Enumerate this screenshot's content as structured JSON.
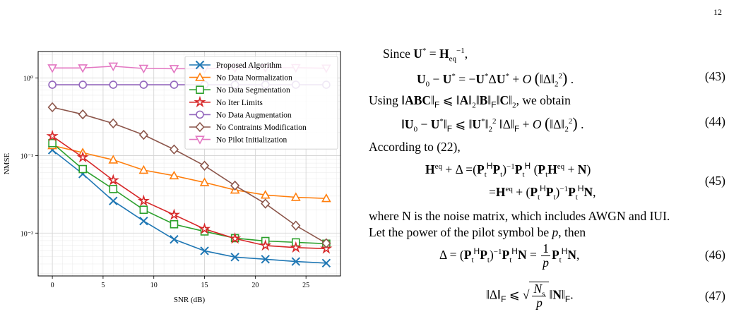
{
  "page_number": "12",
  "chart_data": {
    "type": "line",
    "xlabel": "SNR (dB)",
    "ylabel": "NMSE",
    "x": [
      0,
      3,
      6,
      9,
      12,
      15,
      18,
      21,
      24,
      27
    ],
    "xticks": [
      "0",
      "5",
      "10",
      "15",
      "20",
      "25"
    ],
    "xtick_values": [
      0,
      5,
      10,
      15,
      20,
      25
    ],
    "yticks": [
      "10⁻²",
      "10⁻¹",
      "10⁰"
    ],
    "ytick_values": [
      0.01,
      0.1,
      1
    ],
    "xlim": [
      -1.4,
      28.4
    ],
    "ylim": [
      0.0028,
      2.2
    ],
    "yscale": "log",
    "grid": true,
    "legend_placement": "top-right",
    "series": [
      {
        "name": "Proposed Algorithm",
        "color": "#1f77b4",
        "marker": "x",
        "values": [
          0.118,
          0.058,
          0.026,
          0.0143,
          0.0083,
          0.0059,
          0.0049,
          0.0046,
          0.0043,
          0.0041
        ]
      },
      {
        "name": "No Data Normalization",
        "color": "#ff7f0e",
        "marker": "triangle-up",
        "values": [
          0.135,
          0.109,
          0.088,
          0.065,
          0.055,
          0.045,
          0.036,
          0.031,
          0.029,
          0.028
        ]
      },
      {
        "name": "No Data Segmentation",
        "color": "#2ca02c",
        "marker": "square",
        "values": [
          0.145,
          0.067,
          0.037,
          0.02,
          0.013,
          0.0105,
          0.0086,
          0.0079,
          0.0076,
          0.0073
        ]
      },
      {
        "name": "No Iter Limits",
        "color": "#d62728",
        "marker": "star",
        "values": [
          0.178,
          0.095,
          0.048,
          0.026,
          0.0172,
          0.0113,
          0.0085,
          0.0069,
          0.0065,
          0.0063
        ]
      },
      {
        "name": "No Data Augmentation",
        "color": "#9467bd",
        "marker": "circle",
        "values": [
          0.82,
          0.82,
          0.82,
          0.82,
          0.82,
          0.82,
          0.82,
          0.82,
          0.82,
          0.82
        ]
      },
      {
        "name": "No Contraints Modification",
        "color": "#8c564b",
        "marker": "diamond",
        "values": [
          0.42,
          0.34,
          0.26,
          0.185,
          0.12,
          0.074,
          0.041,
          0.024,
          0.0125,
          0.0074
        ]
      },
      {
        "name": "No Pilot Initialization",
        "color": "#e377c2",
        "marker": "triangle-down",
        "values": [
          1.35,
          1.35,
          1.42,
          1.33,
          1.32,
          1.32,
          1.34,
          1.36,
          1.36,
          1.34
        ]
      }
    ]
  },
  "text": {
    "since": "Since",
    "using": "Using",
    "we_obtain": ", we obtain",
    "according": "According to (22),",
    "where_line": "where N is the noise matrix, which includes AWGN and IUI.",
    "let_line": "Let the power of the pilot symbol be",
    "then": ", then",
    "eq43": "(43)",
    "eq44": "(44)",
    "eq45": "(45)",
    "eq46": "(46)",
    "eq47": "(47)"
  }
}
